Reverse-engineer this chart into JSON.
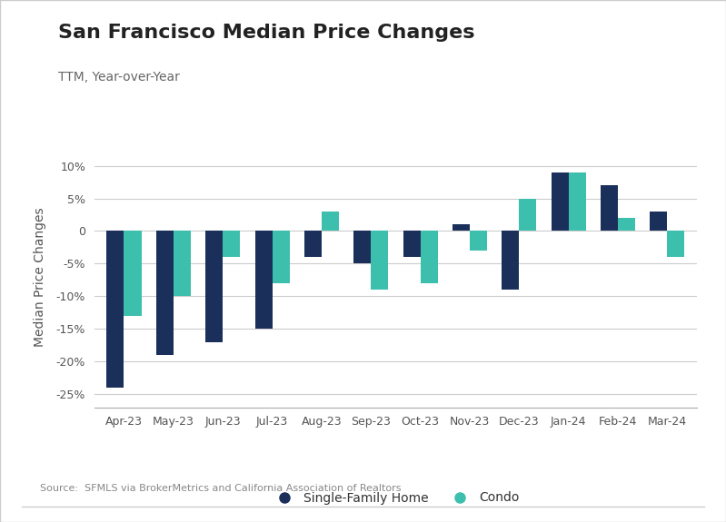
{
  "title": "San Francisco Median Price Changes",
  "subtitle": "TTM, Year-over-Year",
  "ylabel": "Median Price Changes",
  "source": "Source:  SFMLS via BrokerMetrics and California Association of Realtors",
  "categories": [
    "Apr-23",
    "May-23",
    "Jun-23",
    "Jul-23",
    "Aug-23",
    "Sep-23",
    "Oct-23",
    "Nov-23",
    "Dec-23",
    "Jan-24",
    "Feb-24",
    "Mar-24"
  ],
  "sfh_values": [
    -24,
    -19,
    -17,
    -15,
    -4,
    -5,
    -4,
    1,
    -9,
    9,
    7,
    3
  ],
  "condo_values": [
    -13,
    -10,
    -4,
    -8,
    3,
    -9,
    -8,
    -3,
    5,
    9,
    2,
    -4
  ],
  "sfh_color": "#1b2f5b",
  "condo_color": "#3dbfad",
  "ylim": [
    -27,
    13
  ],
  "yticks": [
    -25,
    -20,
    -15,
    -10,
    -5,
    0,
    5,
    10
  ],
  "ytick_labels": [
    "-25%",
    "-20%",
    "-15%",
    "-10%",
    "-5%",
    "0",
    "5%",
    "10%"
  ],
  "bar_width": 0.35,
  "background_color": "#ffffff",
  "outer_bg": "#f5f5f5",
  "grid_color": "#cccccc",
  "legend_sfh": "Single-Family Home",
  "legend_condo": "Condo",
  "title_fontsize": 16,
  "subtitle_fontsize": 10,
  "tick_fontsize": 9,
  "ylabel_fontsize": 10,
  "source_fontsize": 8,
  "border_color": "#cccccc"
}
